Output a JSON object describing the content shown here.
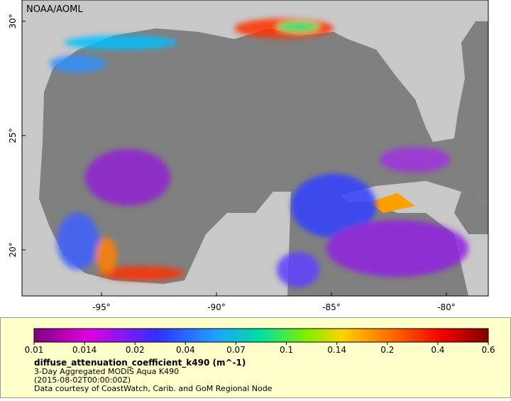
{
  "map": {
    "credit": "NOAA/AOML",
    "lat_labels": [
      "30°",
      "25°",
      "20°"
    ],
    "lon_labels": [
      "-95°",
      "-90°",
      "-85°",
      "-80°"
    ],
    "colorbar_labels": [
      "0.01",
      "0.014",
      "0.02",
      "0.04",
      "0.07",
      "0.1",
      "0.14",
      "0.2",
      "0.4",
      "0.6"
    ],
    "variable": "diffuse_attenuation_coefficient_k490 (m^-1)",
    "dataset": "3-Day Aggregated MODIS Aqua K490",
    "time": "(2015-08-02T00:00:00Z)",
    "courtesy": "Data courtesy of CoastWatch, Carib. and GoM Regional Node"
  }
}
